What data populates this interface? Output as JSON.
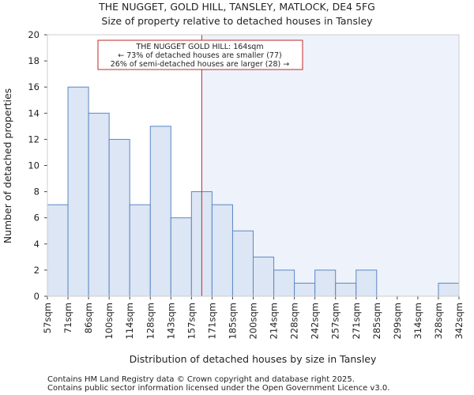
{
  "chart_data": {
    "type": "histogram",
    "title_line1": "THE NUGGET, GOLD HILL, TANSLEY, MATLOCK, DE4 5FG",
    "title_line2": "Size of property relative to detached houses in Tansley",
    "xlabel": "Distribution of detached houses by size in Tansley",
    "ylabel": "Number of detached properties",
    "categories": [
      "57sqm",
      "71sqm",
      "86sqm",
      "100sqm",
      "114sqm",
      "128sqm",
      "143sqm",
      "157sqm",
      "171sqm",
      "185sqm",
      "200sqm",
      "214sqm",
      "228sqm",
      "242sqm",
      "257sqm",
      "271sqm",
      "285sqm",
      "299sqm",
      "314sqm",
      "328sqm",
      "342sqm"
    ],
    "values": [
      7,
      16,
      14,
      12,
      7,
      13,
      6,
      8,
      7,
      5,
      3,
      2,
      1,
      2,
      1,
      2,
      0,
      0,
      0,
      1
    ],
    "ylim": [
      0,
      20
    ],
    "yticks": [
      0,
      2,
      4,
      6,
      8,
      10,
      12,
      14,
      16,
      18,
      20
    ],
    "marker": {
      "value_sqm": 164,
      "label_line1": "THE NUGGET GOLD HILL: 164sqm",
      "label_line2": "← 73% of detached houses are smaller (77)",
      "label_line3": "26% of semi-detached houses are larger (28) →"
    },
    "colors": {
      "bar_fill": "#dce6f4",
      "bar_stroke": "#5b87c5",
      "marker": "#c0282d",
      "shade": "#eef2fa"
    }
  },
  "footer": {
    "line1": "Contains HM Land Registry data © Crown copyright and database right 2025.",
    "line2": "Contains public sector information licensed under the Open Government Licence v3.0."
  }
}
